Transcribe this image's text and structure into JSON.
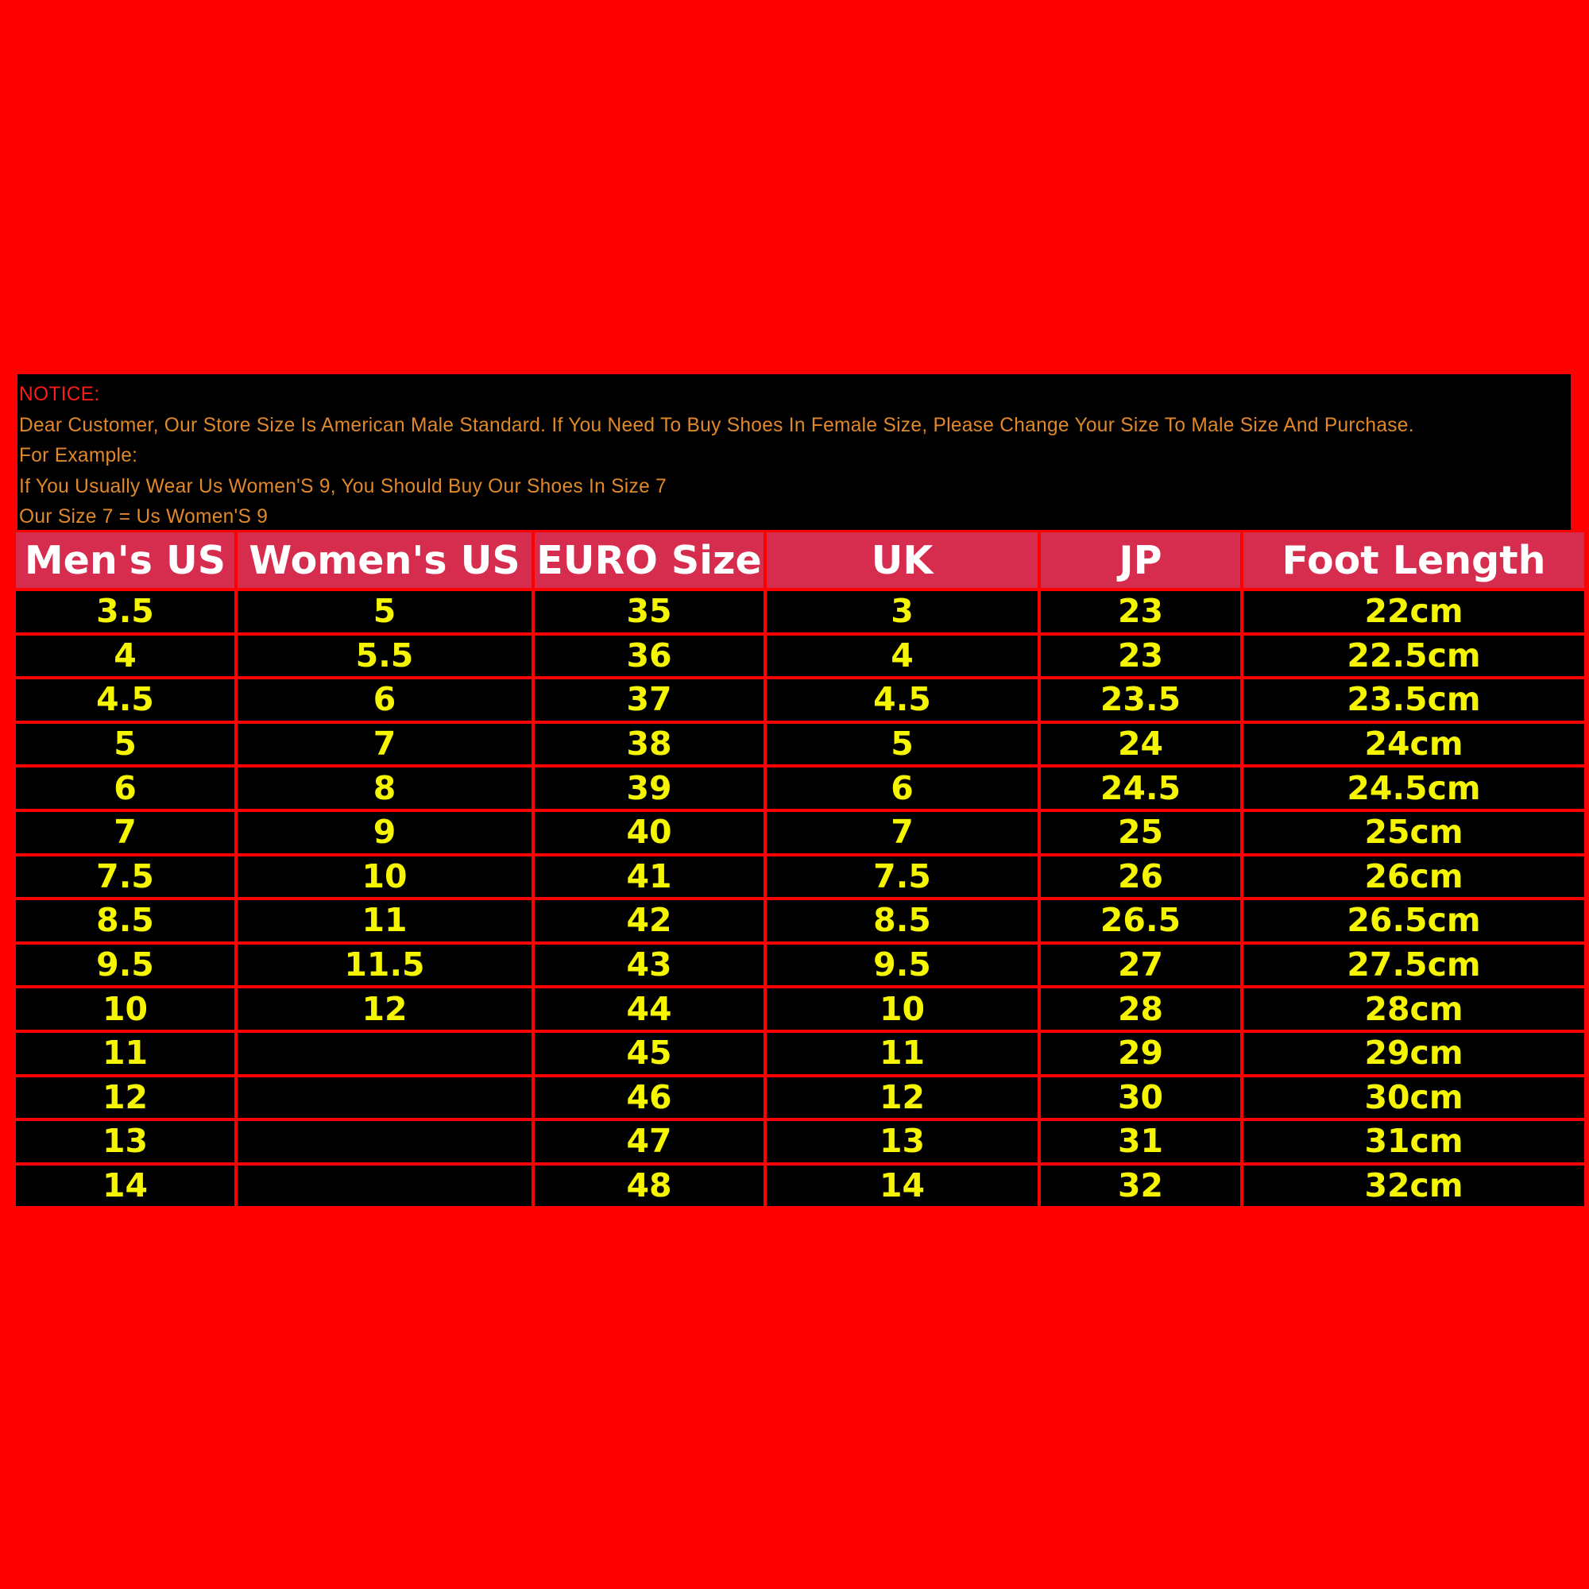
{
  "notice": {
    "title": "NOTICE:",
    "lines": [
      "Dear Customer, Our Store Size Is American Male Standard. If You Need To Buy Shoes In Female Size, Please Change Your Size To Male Size And Purchase.",
      "For Example:",
      "If You Usually Wear Us Women'S 9, You Should Buy Our Shoes In Size 7",
      "Our Size 7 = Us Women'S 9"
    ]
  },
  "colors": {
    "background": "#ff0000",
    "header": "#d62c4e",
    "value_text": "#f5f500",
    "notice_text": "#e0882a"
  },
  "table": {
    "headers": [
      "Men's US",
      "Women's US",
      "EURO Size",
      "UK",
      "JP",
      "Foot Length"
    ],
    "rows": [
      [
        "3.5",
        "5",
        "35",
        "3",
        "23",
        "22cm"
      ],
      [
        "4",
        "5.5",
        "36",
        "4",
        "23",
        "22.5cm"
      ],
      [
        "4.5",
        "6",
        "37",
        "4.5",
        "23.5",
        "23.5cm"
      ],
      [
        "5",
        "7",
        "38",
        "5",
        "24",
        "24cm"
      ],
      [
        "6",
        "8",
        "39",
        "6",
        "24.5",
        "24.5cm"
      ],
      [
        "7",
        "9",
        "40",
        "7",
        "25",
        "25cm"
      ],
      [
        "7.5",
        "10",
        "41",
        "7.5",
        "26",
        "26cm"
      ],
      [
        "8.5",
        "11",
        "42",
        "8.5",
        "26.5",
        "26.5cm"
      ],
      [
        "9.5",
        "11.5",
        "43",
        "9.5",
        "27",
        "27.5cm"
      ],
      [
        "10",
        "12",
        "44",
        "10",
        "28",
        "28cm"
      ],
      [
        "11",
        "",
        "45",
        "11",
        "29",
        "29cm"
      ],
      [
        "12",
        "",
        "46",
        "12",
        "30",
        "30cm"
      ],
      [
        "13",
        "",
        "47",
        "13",
        "31",
        "31cm"
      ],
      [
        "14",
        "",
        "48",
        "14",
        "32",
        "32cm"
      ]
    ]
  }
}
